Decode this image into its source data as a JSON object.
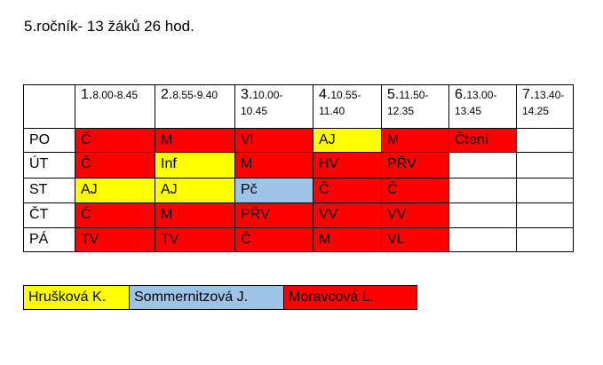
{
  "title": "5.ročník- 13 žáků 26 hod.",
  "teachers": [
    {
      "name": "Hrušková K.",
      "color": "#ffff00"
    },
    {
      "name": "Sommernitzová J.",
      "color": "#9dc3e6"
    },
    {
      "name": "Moravcová L.",
      "color": "#ff0000"
    }
  ],
  "table": {
    "header": [
      {
        "num": "1.",
        "time": "8.00-8.45"
      },
      {
        "num": "2.",
        "time": "8.55-9.40"
      },
      {
        "num": "3.",
        "time": "10.00-10.45"
      },
      {
        "num": "4.",
        "time": "10.55-11.40"
      },
      {
        "num": "5.",
        "time": "11.50-12.35"
      },
      {
        "num": "6.",
        "time": "13.00-13.45"
      },
      {
        "num": "7.",
        "time": "13.40-14.25"
      }
    ],
    "rows": [
      {
        "day": "PO",
        "cells": [
          {
            "text": "Č",
            "teacher": 2
          },
          {
            "text": "M",
            "teacher": 2
          },
          {
            "text": "Vl",
            "teacher": 2
          },
          {
            "text": "AJ",
            "teacher": 0
          },
          {
            "text": "M",
            "teacher": 2
          },
          {
            "text": "Čtení",
            "teacher": 2
          },
          null
        ]
      },
      {
        "day": "ÚT",
        "cells": [
          {
            "text": "Č",
            "teacher": 2
          },
          {
            "text": "Inf",
            "teacher": 0
          },
          {
            "text": "M",
            "teacher": 2
          },
          {
            "text": "HV",
            "teacher": 2
          },
          {
            "text": "PŘV",
            "teacher": 2
          },
          null,
          null
        ]
      },
      {
        "day": "ST",
        "cells": [
          {
            "text": "AJ",
            "teacher": 0
          },
          {
            "text": "AJ",
            "teacher": 0
          },
          {
            "text": "Pč",
            "teacher": 1
          },
          {
            "text": "Č",
            "teacher": 2
          },
          {
            "text": "Č",
            "teacher": 2
          },
          null,
          null
        ]
      },
      {
        "day": "ČT",
        "cells": [
          {
            "text": "Č",
            "teacher": 2
          },
          {
            "text": "M",
            "teacher": 2
          },
          {
            "text": "PŘV",
            "teacher": 2
          },
          {
            "text": "VV",
            "teacher": 2
          },
          {
            "text": "VV",
            "teacher": 2
          },
          null,
          null
        ]
      },
      {
        "day": "PÁ",
        "cells": [
          {
            "text": "TV",
            "teacher": 2
          },
          {
            "text": "TV",
            "teacher": 2
          },
          {
            "text": "Č",
            "teacher": 2
          },
          {
            "text": "M",
            "teacher": 2
          },
          {
            "text": "VL",
            "teacher": 2
          },
          null,
          null
        ]
      }
    ]
  }
}
